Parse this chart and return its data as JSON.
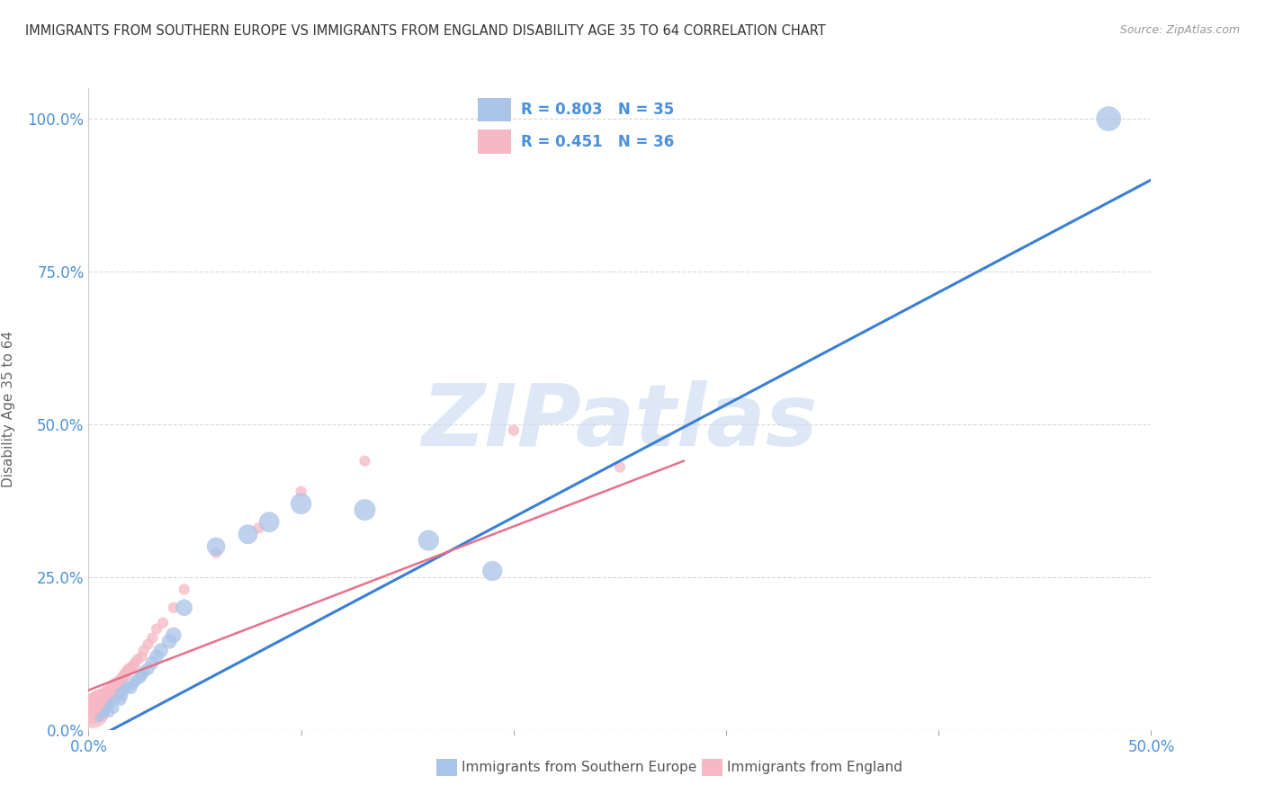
{
  "title": "IMMIGRANTS FROM SOUTHERN EUROPE VS IMMIGRANTS FROM ENGLAND DISABILITY AGE 35 TO 64 CORRELATION CHART",
  "source": "Source: ZipAtlas.com",
  "ylabel_label": "Disability Age 35 to 64",
  "legend_blue_label": "Immigrants from Southern Europe",
  "legend_pink_label": "Immigrants from England",
  "legend_blue_R": "R = 0.803",
  "legend_blue_N": "N = 35",
  "legend_pink_R": "R = 0.451",
  "legend_pink_N": "N = 36",
  "blue_color": "#aac4e8",
  "pink_color": "#f5b8c4",
  "blue_line_color": "#3a7fd5",
  "pink_line_color": "#e8708a",
  "watermark": "ZIPatlas",
  "watermark_color": "#c8d8f0",
  "blue_scatter_x": [
    0.005,
    0.007,
    0.008,
    0.009,
    0.01,
    0.01,
    0.011,
    0.012,
    0.013,
    0.015,
    0.015,
    0.016,
    0.017,
    0.018,
    0.02,
    0.021,
    0.022,
    0.024,
    0.025,
    0.026,
    0.028,
    0.03,
    0.032,
    0.034,
    0.038,
    0.04,
    0.045,
    0.06,
    0.075,
    0.085,
    0.1,
    0.13,
    0.16,
    0.19,
    0.48
  ],
  "blue_scatter_y": [
    0.02,
    0.025,
    0.03,
    0.035,
    0.028,
    0.04,
    0.045,
    0.035,
    0.05,
    0.048,
    0.06,
    0.055,
    0.065,
    0.07,
    0.068,
    0.075,
    0.08,
    0.085,
    0.09,
    0.095,
    0.1,
    0.11,
    0.12,
    0.13,
    0.145,
    0.155,
    0.2,
    0.3,
    0.32,
    0.34,
    0.37,
    0.36,
    0.31,
    0.26,
    1.0
  ],
  "blue_scatter_sizes": [
    50,
    50,
    50,
    50,
    60,
    60,
    60,
    70,
    70,
    80,
    80,
    80,
    80,
    80,
    90,
    90,
    90,
    100,
    100,
    100,
    110,
    120,
    130,
    140,
    150,
    160,
    180,
    220,
    250,
    270,
    290,
    300,
    280,
    260,
    400
  ],
  "pink_scatter_x": [
    0.002,
    0.003,
    0.004,
    0.005,
    0.006,
    0.007,
    0.008,
    0.009,
    0.01,
    0.011,
    0.012,
    0.013,
    0.014,
    0.015,
    0.016,
    0.017,
    0.018,
    0.019,
    0.02,
    0.021,
    0.022,
    0.023,
    0.025,
    0.026,
    0.028,
    0.03,
    0.032,
    0.035,
    0.04,
    0.045,
    0.06,
    0.08,
    0.1,
    0.13,
    0.2,
    0.25
  ],
  "pink_scatter_y": [
    0.03,
    0.035,
    0.04,
    0.045,
    0.05,
    0.048,
    0.055,
    0.06,
    0.058,
    0.065,
    0.07,
    0.075,
    0.072,
    0.08,
    0.085,
    0.09,
    0.095,
    0.1,
    0.1,
    0.105,
    0.11,
    0.115,
    0.12,
    0.13,
    0.14,
    0.15,
    0.165,
    0.175,
    0.2,
    0.23,
    0.29,
    0.33,
    0.39,
    0.44,
    0.49,
    0.43
  ],
  "pink_scatter_sizes": [
    700,
    600,
    500,
    400,
    300,
    250,
    200,
    180,
    160,
    150,
    140,
    130,
    120,
    110,
    100,
    100,
    100,
    90,
    90,
    90,
    80,
    80,
    80,
    80,
    80,
    80,
    80,
    80,
    80,
    80,
    80,
    80,
    80,
    80,
    80,
    80
  ],
  "blue_line_x": [
    0.0,
    0.5
  ],
  "blue_line_y": [
    -0.02,
    0.9
  ],
  "pink_line_x": [
    0.0,
    0.28
  ],
  "pink_line_y": [
    0.065,
    0.44
  ],
  "xlim": [
    0.0,
    0.5
  ],
  "ylim": [
    0.0,
    1.05
  ],
  "xtick_positions": [
    0.0,
    0.1,
    0.2,
    0.3,
    0.4,
    0.5
  ],
  "xtick_labels": [
    "0.0%",
    "",
    "",
    "",
    "",
    "50.0%"
  ],
  "ytick_positions": [
    0.0,
    0.25,
    0.5,
    0.75,
    1.0
  ],
  "ytick_labels": [
    "0.0%",
    "25.0%",
    "50.0%",
    "75.0%",
    "100.0%"
  ],
  "background_color": "#ffffff",
  "grid_color": "#d8d8d8",
  "tick_color": "#4a90d9",
  "title_color": "#333333",
  "source_color": "#999999",
  "ylabel_color": "#666666"
}
